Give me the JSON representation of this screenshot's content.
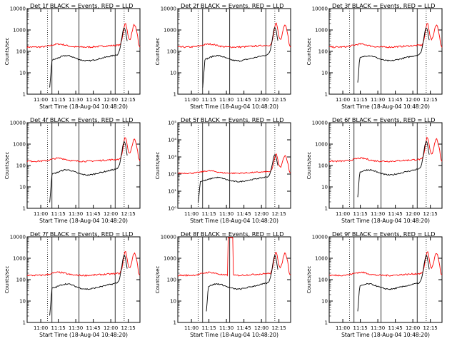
{
  "chart_data": [
    {
      "type": "line",
      "title": "Det 1f BLACK = Events, RED = LLD",
      "xlabel": "Start Time (18-Aug-04 10:48:20)",
      "ylabel": "Counts/sec",
      "y_scale": "log",
      "ylim": [
        1,
        10000
      ],
      "y_tick_labels": [
        "1",
        "10",
        "100",
        "1000",
        "10000"
      ],
      "x_tick_labels": [
        "11:00",
        "11:15",
        "11:30",
        "11:45",
        "12:00",
        "12:15"
      ],
      "colors": {
        "events": "#000000",
        "lld": "#ff0000"
      }
    },
    {
      "type": "line",
      "title": "Det 2f BLACK = Events, RED = LLD",
      "xlabel": "Start Time (18-Aug-04 10:48:20)",
      "ylabel": "Counts/sec",
      "y_scale": "log",
      "ylim": [
        1,
        10000
      ],
      "y_tick_labels": [
        "1",
        "10",
        "100",
        "1000",
        "10000"
      ],
      "x_tick_labels": [
        "11:00",
        "11:15",
        "11:30",
        "11:45",
        "12:00",
        "12:15"
      ],
      "colors": {
        "events": "#000000",
        "lld": "#ff0000"
      }
    },
    {
      "type": "line",
      "title": "Det 3f BLACK = Events, RED = LLD",
      "xlabel": "Start Time (18-Aug-04 10:48:20)",
      "ylabel": "Counts/sec",
      "y_scale": "log",
      "ylim": [
        1,
        10000
      ],
      "y_tick_labels": [
        "1",
        "10",
        "100",
        "1000",
        "10000"
      ],
      "x_tick_labels": [
        "11:00",
        "11:15",
        "11:30",
        "11:45",
        "12:00",
        "12:15"
      ],
      "colors": {
        "events": "#000000",
        "lld": "#ff0000"
      }
    },
    {
      "type": "line",
      "title": "Det 4f BLACK = Events, RED = LLD",
      "xlabel": "Start Time (18-Aug-04 10:48:20)",
      "ylabel": "Counts/sec",
      "y_scale": "log",
      "ylim": [
        1,
        10000
      ],
      "y_tick_labels": [
        "1",
        "10",
        "100",
        "1000",
        "10000"
      ],
      "x_tick_labels": [
        "11:00",
        "11:15",
        "11:30",
        "11:45",
        "12:00",
        "12:15"
      ],
      "colors": {
        "events": "#000000",
        "lld": "#ff0000"
      }
    },
    {
      "type": "line",
      "title": "Det 5f BLACK = Events, RED = LLD",
      "xlabel": "Start Time (18-Aug-04 10:48:20)",
      "ylabel": "Counts/sec",
      "y_scale": "log",
      "ylim": [
        1,
        100000
      ],
      "y_tick_labels": [
        "10⁰",
        "10¹",
        "10²",
        "10³",
        "10⁴",
        "10⁵"
      ],
      "x_tick_labels": [
        "11:00",
        "11:15",
        "11:30",
        "11:45",
        "12:00",
        "12:15"
      ],
      "colors": {
        "events": "#000000",
        "lld": "#ff0000"
      }
    },
    {
      "type": "line",
      "title": "Det 6f BLACK = Events, RED = LLD",
      "xlabel": "Start Time (18-Aug-04 10:48:20)",
      "ylabel": "Counts/sec",
      "y_scale": "log",
      "ylim": [
        1,
        10000
      ],
      "y_tick_labels": [
        "1",
        "10",
        "100",
        "1000",
        "10000"
      ],
      "x_tick_labels": [
        "11:00",
        "11:15",
        "11:30",
        "11:45",
        "12:00",
        "12:15"
      ],
      "colors": {
        "events": "#000000",
        "lld": "#ff0000"
      }
    },
    {
      "type": "line",
      "title": "Det 7f BLACK = Events, RED = LLD",
      "xlabel": "Start Time (18-Aug-04 10:48:20)",
      "ylabel": "Counts/sec",
      "y_scale": "log",
      "ylim": [
        1,
        10000
      ],
      "y_tick_labels": [
        "1",
        "10",
        "100",
        "1000",
        "10000"
      ],
      "x_tick_labels": [
        "11:00",
        "11:15",
        "11:30",
        "11:45",
        "12:00",
        "12:15"
      ],
      "colors": {
        "events": "#000000",
        "lld": "#ff0000"
      }
    },
    {
      "type": "line",
      "title": "Det 8f BLACK = Events, RED = LLD",
      "xlabel": "Start Time (18-Aug-04 10:48:20)",
      "ylabel": "Counts/sec",
      "y_scale": "log",
      "ylim": [
        1,
        10000
      ],
      "y_tick_labels": [
        "1",
        "10",
        "100",
        "1000",
        "10000"
      ],
      "x_tick_labels": [
        "11:00",
        "11:15",
        "11:30",
        "11:45",
        "12:00",
        "12:15"
      ],
      "colors": {
        "events": "#000000",
        "lld": "#ff0000"
      }
    },
    {
      "type": "line",
      "title": "Det 9f BLACK = Events, RED = LLD",
      "xlabel": "Start Time (18-Aug-04 10:48:20)",
      "ylabel": "Counts/sec",
      "y_scale": "log",
      "ylim": [
        1,
        10000
      ],
      "y_tick_labels": [
        "1",
        "10",
        "100",
        "1000",
        "10000"
      ],
      "x_tick_labels": [
        "11:00",
        "11:15",
        "11:30",
        "11:45",
        "12:00",
        "12:15"
      ],
      "colors": {
        "events": "#000000",
        "lld": "#ff0000"
      }
    }
  ]
}
